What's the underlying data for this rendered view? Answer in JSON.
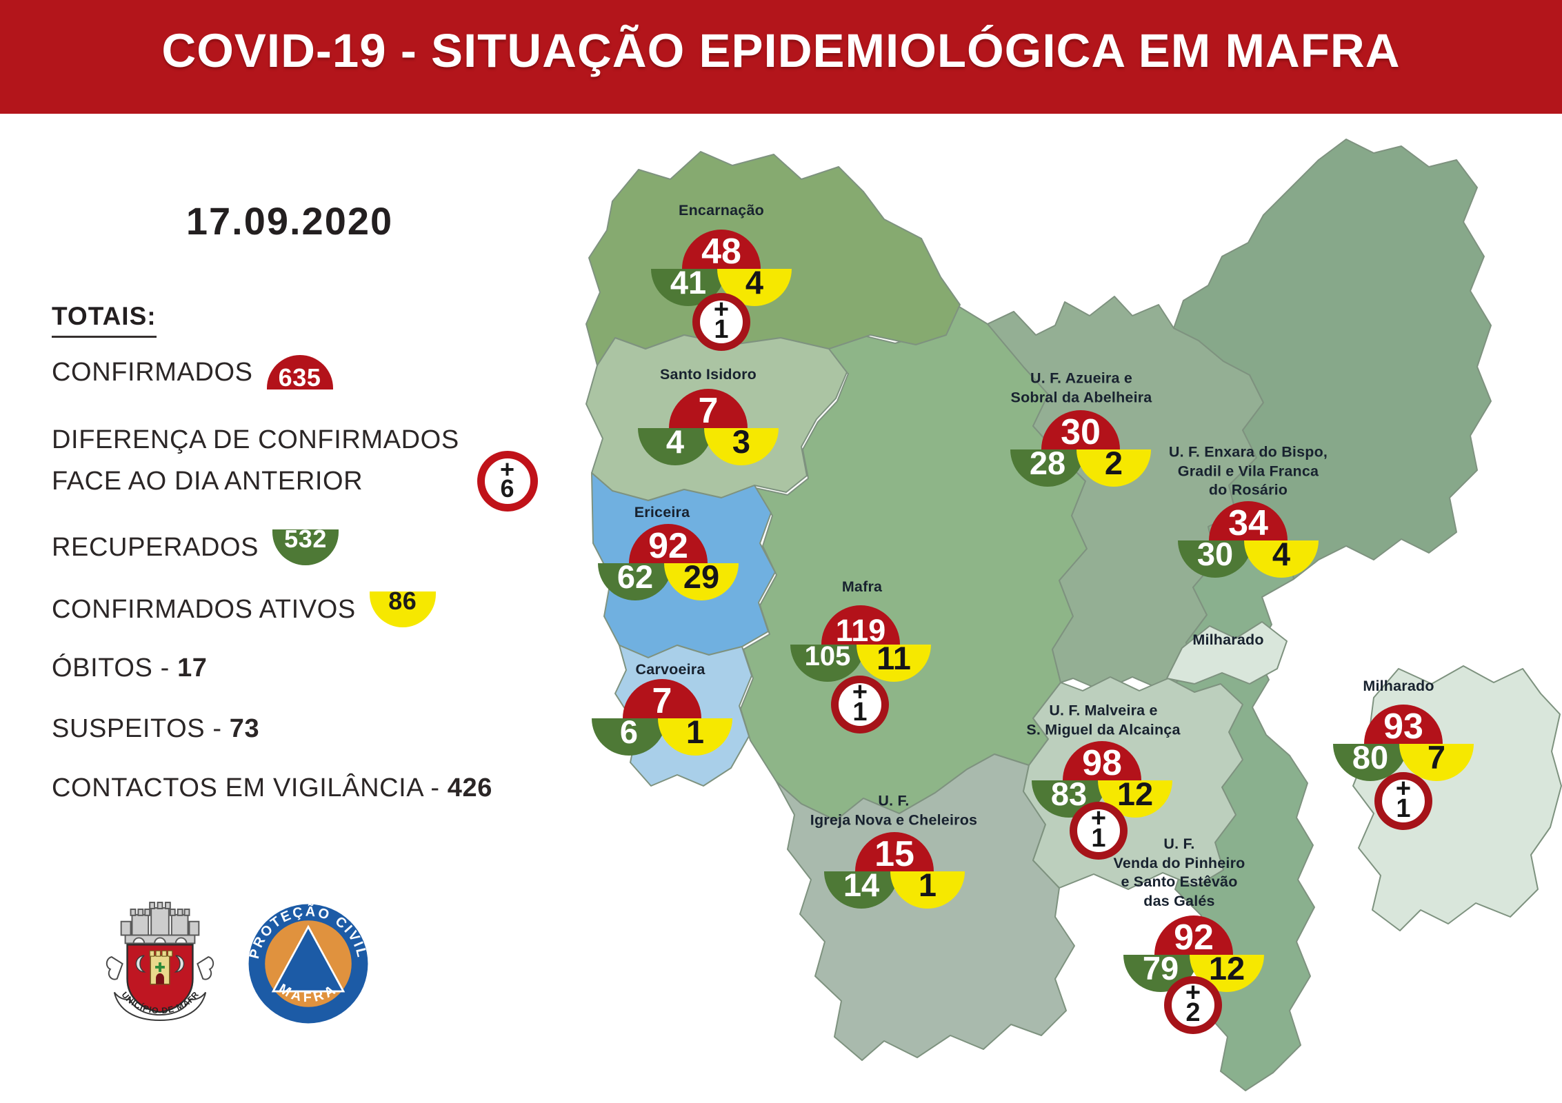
{
  "header": {
    "title": "COVID-19 - SITUAÇÃO EPIDEMIOLÓGICA EM MAFRA"
  },
  "date": "17.09.2020",
  "totals": {
    "heading": "TOTAIS:",
    "confirmados": {
      "label": "CONFIRMADOS",
      "value": "635"
    },
    "diferenca": {
      "label_line1": "DIFERENÇA DE CONFIRMADOS",
      "label_line2": "FACE AO DIA ANTERIOR",
      "sign": "+",
      "value": "6"
    },
    "recuperados": {
      "label": "RECUPERADOS",
      "value": "532"
    },
    "ativos": {
      "label": "CONFIRMADOS ATIVOS",
      "value": "86"
    },
    "obitos": {
      "label": "ÓBITOS -",
      "value": "17"
    },
    "suspeitos": {
      "label": "SUSPEITOS -",
      "value": "73"
    },
    "contactos": {
      "label": "CONTACTOS EM VIGILÂNCIA -",
      "value": "426"
    }
  },
  "colors": {
    "confirmed": "#b3121a",
    "recovered": "#4e7936",
    "active": "#f6e800",
    "header": "#b3151b"
  },
  "map": {
    "regions": [
      {
        "id": "encarnacao",
        "name_lines": [
          "Encarnação"
        ],
        "confirmed": "48",
        "recovered": "41",
        "active": "4",
        "delta": {
          "sign": "+",
          "value": "1"
        }
      },
      {
        "id": "santo-isidoro",
        "name_lines": [
          "Santo Isidoro"
        ],
        "confirmed": "7",
        "recovered": "4",
        "active": "3",
        "delta": null
      },
      {
        "id": "ericeira",
        "name_lines": [
          "Ericeira"
        ],
        "confirmed": "92",
        "recovered": "62",
        "active": "29",
        "delta": null
      },
      {
        "id": "carvoeira",
        "name_lines": [
          "Carvoeira"
        ],
        "confirmed": "7",
        "recovered": "6",
        "active": "1",
        "delta": null
      },
      {
        "id": "mafra",
        "name_lines": [
          "Mafra"
        ],
        "confirmed": "119",
        "recovered": "105",
        "active": "11",
        "delta": {
          "sign": "+",
          "value": "1"
        }
      },
      {
        "id": "azueira",
        "name_lines": [
          "U. F. Azueira e",
          "Sobral da Abelheira"
        ],
        "confirmed": "30",
        "recovered": "28",
        "active": "2",
        "delta": null
      },
      {
        "id": "enxara",
        "name_lines": [
          "U. F. Enxara do Bispo,",
          "Gradil e Vila Franca",
          "do Rosário"
        ],
        "confirmed": "34",
        "recovered": "30",
        "active": "4",
        "delta": null
      },
      {
        "id": "malveira",
        "name_lines": [
          "U. F. Malveira e",
          "S. Miguel da Alcainça"
        ],
        "confirmed": "98",
        "recovered": "83",
        "active": "12",
        "delta": {
          "sign": "+",
          "value": "1"
        }
      },
      {
        "id": "igreja-nova",
        "name_lines": [
          "U. F.",
          "Igreja Nova e Cheleiros"
        ],
        "confirmed": "15",
        "recovered": "14",
        "active": "1",
        "delta": null
      },
      {
        "id": "venda",
        "name_lines": [
          "U. F.",
          "Venda do Pinheiro",
          "e Santo Estêvão",
          "das Galés"
        ],
        "confirmed": "92",
        "recovered": "79",
        "active": "12",
        "delta": {
          "sign": "+",
          "value": "2"
        }
      },
      {
        "id": "milharado",
        "name_lines": [
          "Milharado"
        ],
        "confirmed": "93",
        "recovered": "80",
        "active": "7",
        "delta": {
          "sign": "+",
          "value": "1"
        }
      }
    ],
    "extra_labels": [
      {
        "text": "Milharado"
      }
    ]
  },
  "logos": {
    "municipio_text": "MUNICÍPIO DE MAFRA",
    "protecao_line_top": "PROTEÇÃO CIVIL",
    "protecao_line_bottom": "MAFRA"
  }
}
